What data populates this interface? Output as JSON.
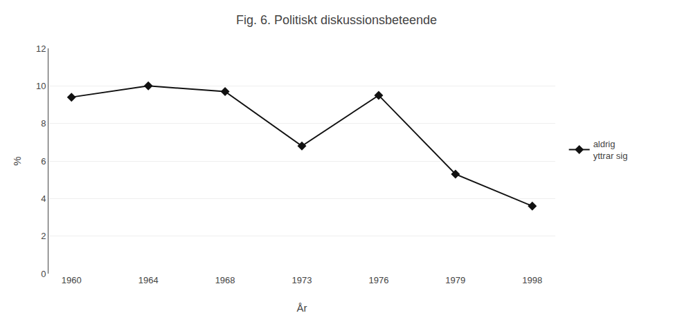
{
  "chart_data": {
    "type": "line",
    "title": "Fig. 6. Politiskt diskussionsbeteende",
    "xlabel": "År",
    "ylabel": "%",
    "categories": [
      "1960",
      "1964",
      "1968",
      "1973",
      "1976",
      "1979",
      "1998"
    ],
    "series": [
      {
        "name": "aldrig\nyttrar sig",
        "color": "#111111",
        "marker": "diamond",
        "values": [
          9.4,
          10.0,
          9.7,
          6.8,
          9.5,
          5.3,
          3.6
        ]
      }
    ],
    "ylim": [
      0,
      12
    ],
    "yticks": [
      0,
      2,
      4,
      6,
      8,
      10,
      12
    ],
    "grid": "y",
    "legend": "right"
  }
}
